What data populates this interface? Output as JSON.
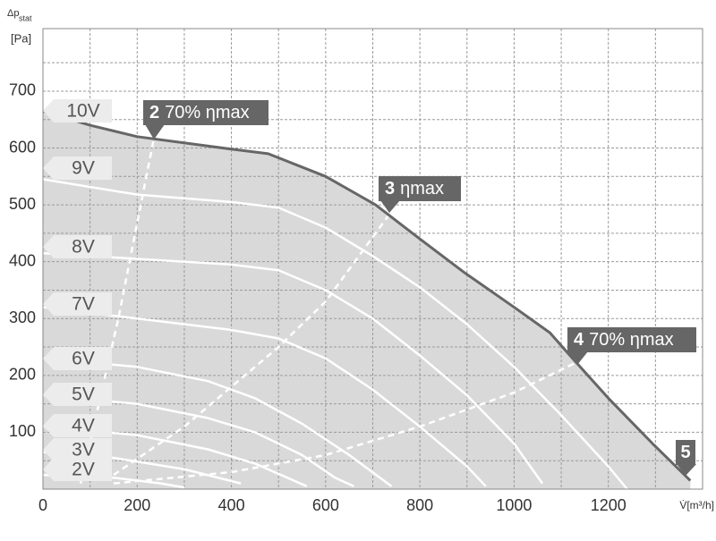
{
  "chart_data": {
    "type": "line",
    "y_label": "Δp",
    "y_label_sub": "stat",
    "y_unit": "[Pa]",
    "x_label": "V̇[m³/h]",
    "xlim": [
      0,
      1400
    ],
    "ylim": [
      0,
      810
    ],
    "xticks": [
      0,
      200,
      400,
      600,
      800,
      1000,
      1200
    ],
    "yticks": [
      100,
      200,
      300,
      400,
      500,
      600,
      700
    ],
    "grid": true,
    "area_color": "#d9d9d9",
    "series": [
      {
        "name": "10V",
        "color": "#666666",
        "x": [
          0,
          100,
          200,
          400,
          478,
          600,
          706,
          800,
          896,
          1000,
          1076,
          1124,
          1200,
          1294,
          1374
        ],
        "values": [
          665,
          640,
          620,
          598,
          590,
          550,
          500,
          440,
          380,
          320,
          275,
          230,
          160,
          80,
          15
        ]
      },
      {
        "name": "9V",
        "color": "#ffffff",
        "x": [
          0,
          200,
          400,
          500,
          600,
          700,
          800,
          900,
          1000,
          1100,
          1200,
          1240
        ],
        "values": [
          545,
          518,
          505,
          495,
          460,
          410,
          355,
          290,
          215,
          130,
          40,
          0
        ]
      },
      {
        "name": "8V",
        "color": "#ffffff",
        "x": [
          0,
          200,
          400,
          500,
          600,
          700,
          800,
          900,
          1000,
          1060
        ],
        "values": [
          415,
          405,
          395,
          385,
          350,
          300,
          235,
          165,
          80,
          10
        ]
      },
      {
        "name": "7V",
        "color": "#ffffff",
        "x": [
          0,
          200,
          400,
          500,
          600,
          700,
          800,
          900,
          940
        ],
        "values": [
          320,
          300,
          280,
          265,
          230,
          175,
          110,
          40,
          5
        ]
      },
      {
        "name": "6V",
        "color": "#ffffff",
        "x": [
          0,
          200,
          350,
          450,
          550,
          650,
          740
        ],
        "values": [
          230,
          215,
          190,
          160,
          115,
          60,
          5
        ]
      },
      {
        "name": "5V",
        "color": "#ffffff",
        "x": [
          0,
          200,
          350,
          450,
          550,
          620,
          660
        ],
        "values": [
          165,
          150,
          125,
          100,
          60,
          20,
          5
        ]
      },
      {
        "name": "4V",
        "color": "#ffffff",
        "x": [
          0,
          200,
          350,
          450,
          560
        ],
        "values": [
          110,
          95,
          70,
          45,
          5
        ]
      },
      {
        "name": "3V",
        "color": "#ffffff",
        "x": [
          0,
          150,
          300,
          420
        ],
        "values": [
          65,
          55,
          35,
          10
        ]
      },
      {
        "name": "2V",
        "color": "#ffffff",
        "x": [
          0,
          150,
          250,
          300
        ],
        "values": [
          25,
          20,
          10,
          3
        ]
      }
    ],
    "efficiency_lines": [
      {
        "x": [
          80,
          160,
          235
        ],
        "values": [
          10,
          300,
          615
        ]
      },
      {
        "x": [
          150,
          300,
          500,
          600,
          750
        ],
        "values": [
          25,
          110,
          250,
          330,
          500
        ]
      },
      {
        "x": [
          150,
          400,
          600,
          800,
          1000,
          1150
        ],
        "values": [
          10,
          30,
          60,
          110,
          170,
          230
        ]
      }
    ],
    "callouts": [
      {
        "number": "2",
        "text": "70% ηmax"
      },
      {
        "number": "3",
        "text": "ηmax"
      },
      {
        "number": "4",
        "text": "70% ηmax"
      },
      {
        "number": "5"
      }
    ]
  }
}
